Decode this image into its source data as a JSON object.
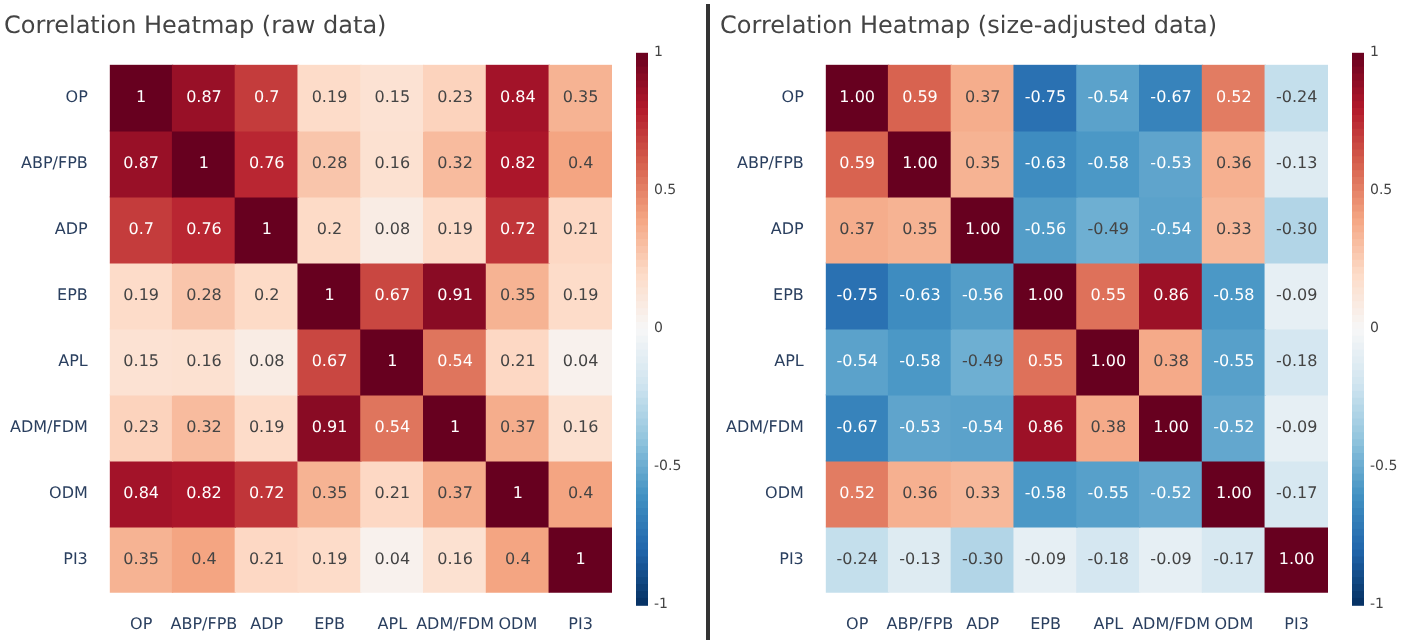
{
  "chart_data": [
    {
      "type": "heatmap",
      "title": "Correlation Heatmap (raw data)",
      "categories": [
        "OP",
        "ABP/FPB",
        "ADP",
        "EPB",
        "APL",
        "ADM/FDM",
        "ODM",
        "PI3"
      ],
      "y_categories": [
        "OP",
        "ABP/FPB",
        "ADP",
        "EPB",
        "APL",
        "ADM/FDM",
        "ODM",
        "PI3"
      ],
      "cells": [
        [
          1,
          0.87,
          0.7,
          0.19,
          0.15,
          0.23,
          0.84,
          0.35
        ],
        [
          0.87,
          1,
          0.76,
          0.28,
          0.16,
          0.32,
          0.82,
          0.4
        ],
        [
          0.7,
          0.76,
          1,
          0.2,
          0.08,
          0.19,
          0.72,
          0.21
        ],
        [
          0.19,
          0.28,
          0.2,
          1,
          0.67,
          0.91,
          0.35,
          0.19
        ],
        [
          0.15,
          0.16,
          0.08,
          0.67,
          1,
          0.54,
          0.21,
          0.04
        ],
        [
          0.23,
          0.32,
          0.19,
          0.91,
          0.54,
          1,
          0.37,
          0.16
        ],
        [
          0.84,
          0.82,
          0.72,
          0.35,
          0.21,
          0.37,
          1,
          0.4
        ],
        [
          0.35,
          0.4,
          0.21,
          0.19,
          0.04,
          0.16,
          0.4,
          1
        ]
      ],
      "clim": [
        -1,
        1
      ],
      "cticks": [
        -1,
        -0.5,
        0,
        0.5,
        1
      ],
      "data_labels": true
    },
    {
      "type": "heatmap",
      "title": "Correlation Heatmap (size-adjusted data)",
      "categories": [
        "OP",
        "ABP/FPB",
        "ADP",
        "EPB",
        "APL",
        "ADM/FDM",
        "ODM",
        "PI3"
      ],
      "y_categories": [
        "OP",
        "ABP/FPB",
        "ADP",
        "EPB",
        "APL",
        "ADM/FDM",
        "ODM",
        "PI3"
      ],
      "cells": [
        [
          1,
          0.59,
          0.37,
          -0.75,
          -0.54,
          -0.67,
          0.52,
          -0.24
        ],
        [
          0.59,
          1,
          0.35,
          -0.63,
          -0.58,
          -0.53,
          0.36,
          -0.13
        ],
        [
          0.37,
          0.35,
          1,
          -0.56,
          -0.49,
          -0.54,
          0.33,
          -0.3
        ],
        [
          -0.75,
          -0.63,
          -0.56,
          1,
          0.55,
          0.86,
          -0.58,
          -0.09
        ],
        [
          -0.54,
          -0.58,
          -0.49,
          0.55,
          1,
          0.38,
          -0.55,
          -0.18
        ],
        [
          -0.67,
          -0.53,
          -0.54,
          0.86,
          0.38,
          1,
          -0.52,
          -0.09
        ],
        [
          0.52,
          0.36,
          0.33,
          -0.58,
          -0.55,
          -0.52,
          1,
          -0.17
        ],
        [
          -0.24,
          -0.13,
          -0.3,
          -0.09,
          -0.18,
          -0.09,
          -0.17,
          1
        ]
      ],
      "cell_labels": [
        [
          "1.00",
          "0.59",
          "0.37",
          "-0.75",
          "-0.54",
          "-0.67",
          "0.52",
          "-0.24"
        ],
        [
          "0.59",
          "1.00",
          "0.35",
          "-0.63",
          "-0.58",
          "-0.53",
          "0.36",
          "-0.13"
        ],
        [
          "0.37",
          "0.35",
          "1.00",
          "-0.56",
          "-0.49",
          "-0.54",
          "0.33",
          "-0.30"
        ],
        [
          "-0.75",
          "-0.63",
          "-0.56",
          "1.00",
          "0.55",
          "0.86",
          "-0.58",
          "-0.09"
        ],
        [
          "-0.54",
          "-0.58",
          "-0.49",
          "0.55",
          "1.00",
          "0.38",
          "-0.55",
          "-0.18"
        ],
        [
          "-0.67",
          "-0.53",
          "-0.54",
          "0.86",
          "0.38",
          "1.00",
          "-0.52",
          "-0.09"
        ],
        [
          "0.52",
          "0.36",
          "0.33",
          "-0.58",
          "-0.55",
          "-0.52",
          "1.00",
          "-0.17"
        ],
        [
          "-0.24",
          "-0.13",
          "-0.30",
          "-0.09",
          "-0.18",
          "-0.09",
          "-0.17",
          "1.00"
        ]
      ],
      "clim": [
        -1,
        1
      ],
      "cticks": [
        -1,
        -0.5,
        0,
        0.5,
        1
      ],
      "data_labels": true
    }
  ]
}
